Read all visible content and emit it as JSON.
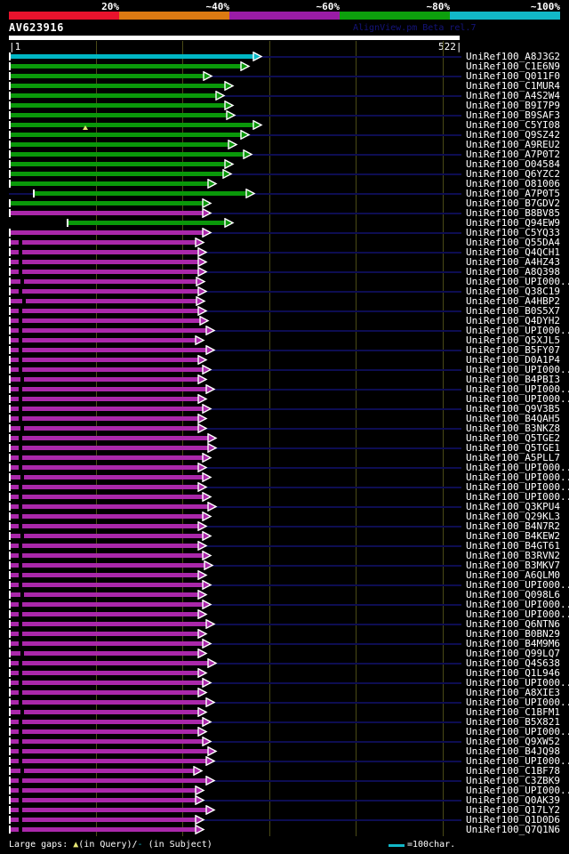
{
  "header": {
    "query_id": "AV623916",
    "app_credit": "AlignView.pm Beta rel.7"
  },
  "scale_bar": {
    "segments": [
      {
        "label": "20%",
        "color": "#e8132d"
      },
      {
        "label": "~40%",
        "color": "#dd7a12"
      },
      {
        "label": "~60%",
        "color": "#9a1ca6"
      },
      {
        "label": "~80%",
        "color": "#0da00d"
      },
      {
        "label": "~100%",
        "color": "#12b8c8"
      }
    ]
  },
  "ruler": {
    "start_label": "|1",
    "end_label": "522|",
    "ticks": [
      100,
      200,
      300,
      400,
      500
    ]
  },
  "footer": {
    "label": "Large gaps: ",
    "query_marker": "▲",
    "query_suffix": "(in Query)/",
    "subject_marker": "-",
    "subject_suffix": " (in Subject)",
    "legend_value": "=100char."
  },
  "palette": {
    "cyan": "#00b7c4",
    "green": "#0a980a",
    "magenta": "#aa28aa",
    "navy_row_line": "#0d0d52",
    "gridline_olive": "#4a4a16",
    "gap_marker_yellow": "#e8e875",
    "credit_navy": "#14147a"
  },
  "chart_data": {
    "type": "alignment-map",
    "query_length": 522,
    "rows": [
      {
        "label": "UniRef100_A8J3G2",
        "color": "cyan",
        "start": 1,
        "end": 290
      },
      {
        "label": "UniRef100_C1E6N9",
        "color": "green",
        "start": 1,
        "end": 276
      },
      {
        "label": "UniRef100_Q011F0",
        "color": "green",
        "start": 1,
        "end": 233
      },
      {
        "label": "UniRef100_C1MUR4",
        "color": "green",
        "start": 1,
        "end": 257
      },
      {
        "label": "UniRef100_A4S2W4",
        "color": "green",
        "start": 1,
        "end": 247
      },
      {
        "label": "UniRef100_B9I7P9",
        "color": "green",
        "start": 1,
        "end": 257
      },
      {
        "label": "UniRef100_B9SAF3",
        "color": "green",
        "start": 1,
        "end": 259
      },
      {
        "label": "UniRef100_C5YI08",
        "color": "green",
        "start": 1,
        "end": 290,
        "tri": 88
      },
      {
        "label": "UniRef100_Q9SZ42",
        "color": "green",
        "start": 1,
        "end": 276
      },
      {
        "label": "UniRef100_A9REU2",
        "color": "green",
        "start": 1,
        "end": 261
      },
      {
        "label": "UniRef100_A7P0T2",
        "color": "green",
        "start": 1,
        "end": 279
      },
      {
        "label": "UniRef100_O04584",
        "color": "green",
        "start": 1,
        "end": 257
      },
      {
        "label": "UniRef100_Q6YZC2",
        "color": "green",
        "start": 1,
        "end": 255
      },
      {
        "label": "UniRef100_O81006",
        "color": "green",
        "start": 1,
        "end": 238
      },
      {
        "label": "UniRef100_A7P0T5",
        "color": "green",
        "start": 29,
        "end": 282
      },
      {
        "label": "UniRef100_B7GDV2",
        "color": "green",
        "start": 1,
        "end": 232
      },
      {
        "label": "UniRef100_B8BV85",
        "color": "magenta",
        "start": 1,
        "end": 232
      },
      {
        "label": "UniRef100_Q94EW9",
        "color": "green",
        "start": 68,
        "end": 257
      },
      {
        "label": "UniRef100_C5YQ33",
        "color": "magenta",
        "start": 1,
        "end": 232
      },
      {
        "label": "UniRef100_Q55DA4",
        "color": "magenta",
        "start": 1,
        "end": 224,
        "dash": 11
      },
      {
        "label": "UniRef100_Q4QCH1",
        "color": "magenta",
        "start": 1,
        "end": 227,
        "dash": 11
      },
      {
        "label": "UniRef100_A4HZ43",
        "color": "magenta",
        "start": 1,
        "end": 227,
        "dash": 11
      },
      {
        "label": "UniRef100_A8Q398",
        "color": "magenta",
        "start": 1,
        "end": 227,
        "dash": 11
      },
      {
        "label": "UniRef100_UPI000..",
        "color": "magenta",
        "start": 1,
        "end": 225,
        "dash": 13
      },
      {
        "label": "UniRef100_Q38C19",
        "color": "magenta",
        "start": 1,
        "end": 227,
        "dash": 11
      },
      {
        "label": "UniRef100_A4HBP2",
        "color": "magenta",
        "start": 1,
        "end": 225,
        "dash": 15
      },
      {
        "label": "UniRef100_B0S5X7",
        "color": "magenta",
        "start": 1,
        "end": 227,
        "dash": 11
      },
      {
        "label": "UniRef100_Q4DYH2",
        "color": "magenta",
        "start": 1,
        "end": 229,
        "dash": 11
      },
      {
        "label": "UniRef100_UPI000..",
        "color": "magenta",
        "start": 1,
        "end": 236,
        "dash": 11
      },
      {
        "label": "UniRef100_Q5XJL5",
        "color": "magenta",
        "start": 1,
        "end": 224,
        "dash": 11
      },
      {
        "label": "UniRef100_B5FY07",
        "color": "magenta",
        "start": 1,
        "end": 236,
        "dash": 11
      },
      {
        "label": "UniRef100_D0A1P4",
        "color": "magenta",
        "start": 1,
        "end": 227,
        "dash": 11
      },
      {
        "label": "UniRef100_UPI000..",
        "color": "magenta",
        "start": 1,
        "end": 232,
        "dash": 11
      },
      {
        "label": "UniRef100_B4PBI3",
        "color": "magenta",
        "start": 1,
        "end": 227,
        "dash": 13
      },
      {
        "label": "UniRef100_UPI000..",
        "color": "magenta",
        "start": 1,
        "end": 236,
        "dash": 11
      },
      {
        "label": "UniRef100_UPI000..",
        "color": "magenta",
        "start": 1,
        "end": 227,
        "dash": 11
      },
      {
        "label": "UniRef100_Q9V3B5",
        "color": "magenta",
        "start": 1,
        "end": 232,
        "dash": 11
      },
      {
        "label": "UniRef100_B4QAH5",
        "color": "magenta",
        "start": 1,
        "end": 227,
        "dash": 11
      },
      {
        "label": "UniRef100_B3NKZ8",
        "color": "magenta",
        "start": 1,
        "end": 227,
        "dash": 13
      },
      {
        "label": "UniRef100_Q5TGE2",
        "color": "magenta",
        "start": 1,
        "end": 238,
        "dash": 11
      },
      {
        "label": "UniRef100_Q5TGE1",
        "color": "magenta",
        "start": 1,
        "end": 238,
        "dash": 11
      },
      {
        "label": "UniRef100_A5PLL7",
        "color": "magenta",
        "start": 1,
        "end": 232,
        "dash": 11
      },
      {
        "label": "UniRef100_UPI000..",
        "color": "magenta",
        "start": 1,
        "end": 227,
        "dash": 11
      },
      {
        "label": "UniRef100_UPI000..",
        "color": "magenta",
        "start": 1,
        "end": 232,
        "dash": 13
      },
      {
        "label": "UniRef100_UPI000..",
        "color": "magenta",
        "start": 1,
        "end": 227,
        "dash": 11
      },
      {
        "label": "UniRef100_UPI000..",
        "color": "magenta",
        "start": 1,
        "end": 232,
        "dash": 11
      },
      {
        "label": "UniRef100_Q3KPU4",
        "color": "magenta",
        "start": 1,
        "end": 238,
        "dash": 11
      },
      {
        "label": "UniRef100_Q29KL3",
        "color": "magenta",
        "start": 1,
        "end": 232,
        "dash": 11
      },
      {
        "label": "UniRef100_B4N7R2",
        "color": "magenta",
        "start": 1,
        "end": 227,
        "dash": 11
      },
      {
        "label": "UniRef100_B4KEW2",
        "color": "magenta",
        "start": 1,
        "end": 232,
        "dash": 13
      },
      {
        "label": "UniRef100_B4GT61",
        "color": "magenta",
        "start": 1,
        "end": 227,
        "dash": 11
      },
      {
        "label": "UniRef100_B3RVN2",
        "color": "magenta",
        "start": 1,
        "end": 232,
        "dash": 11
      },
      {
        "label": "UniRef100_B3MKV7",
        "color": "magenta",
        "start": 1,
        "end": 234,
        "dash": 11
      },
      {
        "label": "UniRef100_A6QLM0",
        "color": "magenta",
        "start": 1,
        "end": 227,
        "dash": 11
      },
      {
        "label": "UniRef100_UPI000..",
        "color": "magenta",
        "start": 1,
        "end": 232,
        "dash": 11
      },
      {
        "label": "UniRef100_Q098L6",
        "color": "magenta",
        "start": 1,
        "end": 227,
        "dash": 13
      },
      {
        "label": "UniRef100_UPI000..",
        "color": "magenta",
        "start": 1,
        "end": 232,
        "dash": 11
      },
      {
        "label": "UniRef100_UPI000..",
        "color": "magenta",
        "start": 1,
        "end": 227,
        "dash": 11
      },
      {
        "label": "UniRef100_Q6NTN6",
        "color": "magenta",
        "start": 1,
        "end": 236,
        "dash": 11
      },
      {
        "label": "UniRef100_B0BN29",
        "color": "magenta",
        "start": 1,
        "end": 227,
        "dash": 11
      },
      {
        "label": "UniRef100_B4M9M6",
        "color": "magenta",
        "start": 1,
        "end": 232,
        "dash": 11
      },
      {
        "label": "UniRef100_Q99LQ7",
        "color": "magenta",
        "start": 1,
        "end": 227,
        "dash": 13
      },
      {
        "label": "UniRef100_Q4S638",
        "color": "magenta",
        "start": 1,
        "end": 238,
        "dash": 11
      },
      {
        "label": "UniRef100_Q1L946",
        "color": "magenta",
        "start": 1,
        "end": 227,
        "dash": 11
      },
      {
        "label": "UniRef100_UPI000..",
        "color": "magenta",
        "start": 1,
        "end": 232,
        "dash": 11
      },
      {
        "label": "UniRef100_A8XIE3",
        "color": "magenta",
        "start": 1,
        "end": 227,
        "dash": 11
      },
      {
        "label": "UniRef100_UPI000..",
        "color": "magenta",
        "start": 1,
        "end": 236,
        "dash": 11
      },
      {
        "label": "UniRef100_C1BFM1",
        "color": "magenta",
        "start": 1,
        "end": 227,
        "dash": 13
      },
      {
        "label": "UniRef100_B5X821",
        "color": "magenta",
        "start": 1,
        "end": 232,
        "dash": 11
      },
      {
        "label": "UniRef100_UPI000..",
        "color": "magenta",
        "start": 1,
        "end": 227,
        "dash": 11
      },
      {
        "label": "UniRef100_Q9XW52",
        "color": "magenta",
        "start": 1,
        "end": 232,
        "dash": 11
      },
      {
        "label": "UniRef100_B4JQ98",
        "color": "magenta",
        "start": 1,
        "end": 238,
        "dash": 11
      },
      {
        "label": "UniRef100_UPI000..",
        "color": "magenta",
        "start": 1,
        "end": 236,
        "dash": 11
      },
      {
        "label": "UniRef100_C1BF78",
        "color": "magenta",
        "start": 1,
        "end": 222,
        "dash": 13
      },
      {
        "label": "UniRef100_C3ZBK9",
        "color": "magenta",
        "start": 1,
        "end": 236,
        "dash": 11
      },
      {
        "label": "UniRef100_UPI000..",
        "color": "magenta",
        "start": 1,
        "end": 224,
        "dash": 11
      },
      {
        "label": "UniRef100_Q0AK39",
        "color": "magenta",
        "start": 1,
        "end": 224,
        "dash": 11
      },
      {
        "label": "UniRef100_Q17LY2",
        "color": "magenta",
        "start": 1,
        "end": 236,
        "dash": 11
      },
      {
        "label": "UniRef100_Q1D0D6",
        "color": "magenta",
        "start": 1,
        "end": 224,
        "dash": 11
      },
      {
        "label": "UniRef100_Q7Q1N6",
        "color": "magenta",
        "start": 1,
        "end": 224,
        "dash": 11
      }
    ]
  }
}
